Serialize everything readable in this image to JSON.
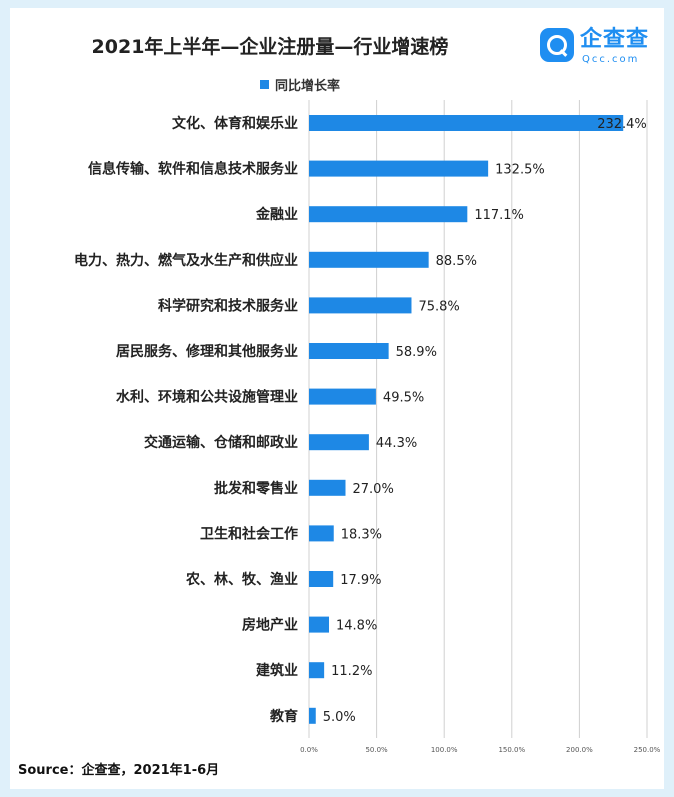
{
  "title": "2021年上半年—企业注册量—行业增速榜",
  "logo": {
    "name": "企查查",
    "sub": "Qcc.com"
  },
  "source": "Source：企查查，2021年1-6月",
  "colors": {
    "bar": "#1e88e5",
    "grid": "#d0d0d0",
    "background": "#dff0fa"
  },
  "chart_data": {
    "type": "bar",
    "orientation": "horizontal",
    "legend": {
      "position": "top",
      "entries": [
        "同比增长率"
      ]
    },
    "categories": [
      "文化、体育和娱乐业",
      "信息传输、软件和信息技术服务业",
      "金融业",
      "电力、热力、燃气及水生产和供应业",
      "科学研究和技术服务业",
      "居民服务、修理和其他服务业",
      "水利、环境和公共设施管理业",
      "交通运输、仓储和邮政业",
      "批发和零售业",
      "卫生和社会工作",
      "农、林、牧、渔业",
      "房地产业",
      "建筑业",
      "教育"
    ],
    "series": [
      {
        "name": "同比增长率",
        "values": [
          232.4,
          132.5,
          117.1,
          88.5,
          75.8,
          58.9,
          49.5,
          44.3,
          27.0,
          18.3,
          17.9,
          14.8,
          11.2,
          5.0
        ],
        "labels": [
          "232.4%",
          "132.5%",
          "117.1%",
          "88.5%",
          "75.8%",
          "58.9%",
          "49.5%",
          "44.3%",
          "27.0%",
          "18.3%",
          "17.9%",
          "14.8%",
          "11.2%",
          "5.0%"
        ]
      }
    ],
    "xlim": [
      0,
      250
    ],
    "xticks": [
      0,
      50,
      100,
      150,
      200,
      250
    ],
    "xtick_labels": [
      "0.0%",
      "50.0%",
      "100.0%",
      "150.0%",
      "200.0%",
      "250.0%"
    ],
    "grid": "vertical"
  }
}
